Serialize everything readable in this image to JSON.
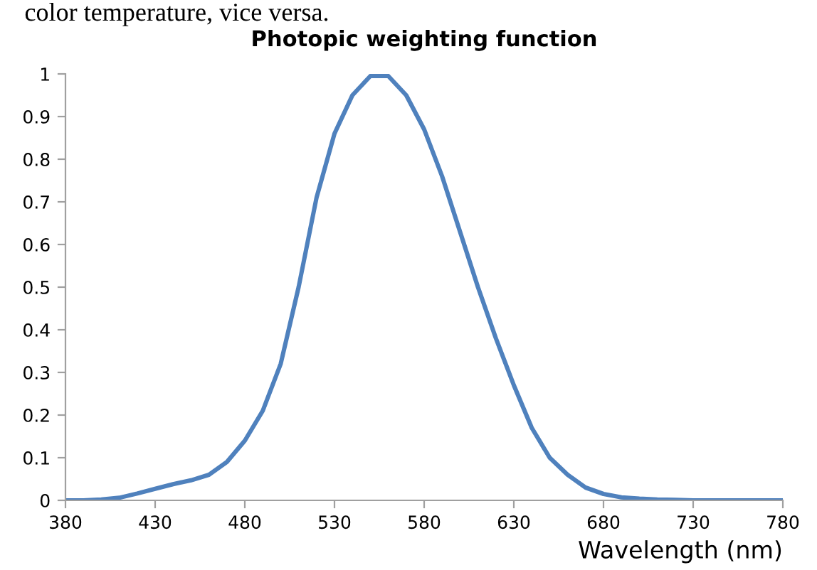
{
  "chart_data": {
    "type": "line",
    "title": "Photopic weighting function",
    "xlabel": "Wavelength (nm)",
    "annotations": [
      "color temperature, vice versa."
    ],
    "x": [
      380,
      390,
      400,
      410,
      420,
      430,
      440,
      450,
      460,
      470,
      480,
      490,
      500,
      510,
      520,
      530,
      540,
      550,
      560,
      570,
      580,
      590,
      600,
      610,
      620,
      630,
      640,
      650,
      660,
      670,
      680,
      690,
      700,
      710,
      720,
      730,
      740,
      750,
      760,
      770,
      780
    ],
    "series": [
      {
        "color": "#4f81bd",
        "values": [
          0,
          0,
          0.002,
          0.006,
          0.016,
          0.027,
          0.038,
          0.047,
          0.06,
          0.09,
          0.14,
          0.21,
          0.32,
          0.5,
          0.71,
          0.86,
          0.95,
          0.995,
          0.995,
          0.95,
          0.87,
          0.76,
          0.63,
          0.5,
          0.38,
          0.27,
          0.17,
          0.1,
          0.06,
          0.03,
          0.015,
          0.007,
          0.004,
          0.002,
          0.001,
          0,
          0,
          0,
          0,
          0,
          0
        ]
      }
    ],
    "xlim": [
      380,
      780
    ],
    "xticks": [
      380,
      430,
      480,
      530,
      580,
      630,
      680,
      730,
      780
    ],
    "ylim": [
      0,
      1
    ],
    "yticks": [
      0,
      {
        "value": 0.1,
        "label": "0.1"
      },
      {
        "value": 0.2,
        "label": "0.2"
      },
      {
        "value": 0.3,
        "label": "0.3"
      },
      {
        "value": 0.4,
        "label": "0.4"
      },
      {
        "value": 0.5,
        "label": "0.5"
      },
      {
        "value": 0.6,
        "label": "0.6"
      },
      {
        "value": 0.7,
        "label": "0.7"
      },
      {
        "value": 0.8,
        "label": "0.8"
      },
      {
        "value": 0.9,
        "label": "0.9"
      },
      1
    ],
    "grid": false,
    "legend": false,
    "marker": "none",
    "line_style": "solid"
  }
}
